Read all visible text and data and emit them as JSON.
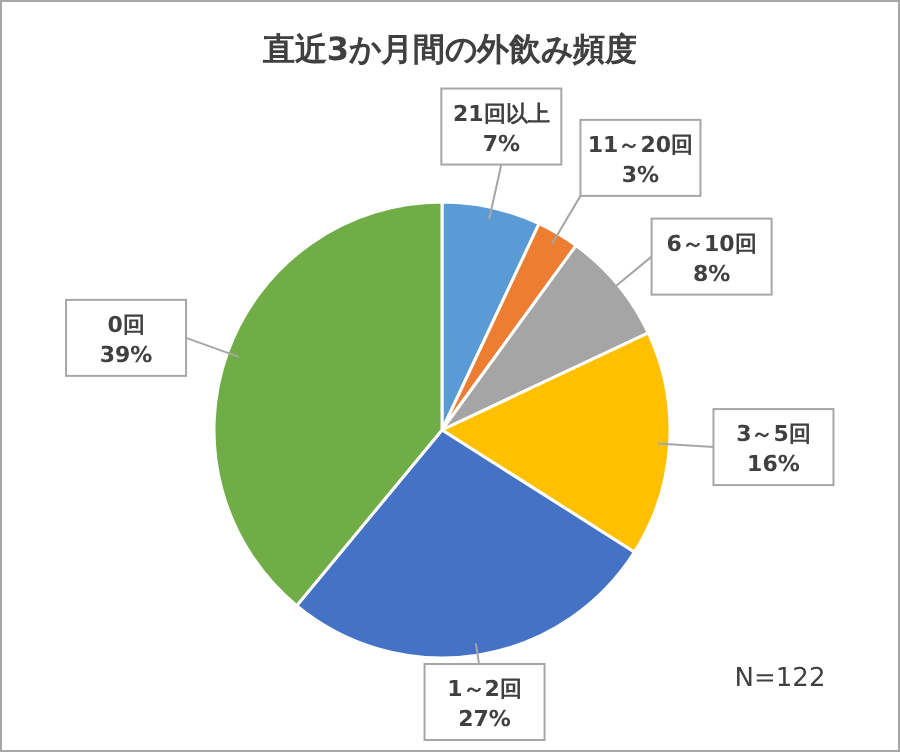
{
  "chart_data": {
    "type": "pie",
    "title": "直近3か月間の外飲み頻度",
    "categories": [
      "21回以上",
      "11～20回",
      "6～10回",
      "3～5回",
      "1～2回",
      "0回"
    ],
    "values": [
      7,
      3,
      8,
      16,
      27,
      39
    ],
    "value_labels": [
      "7%",
      "3%",
      "8%",
      "16%",
      "27%",
      "39%"
    ],
    "colors": [
      "#5b9bd5",
      "#ed7d31",
      "#a5a5a5",
      "#ffc000",
      "#4472c4",
      "#70ad47"
    ],
    "annotations": [
      "N=122"
    ]
  }
}
